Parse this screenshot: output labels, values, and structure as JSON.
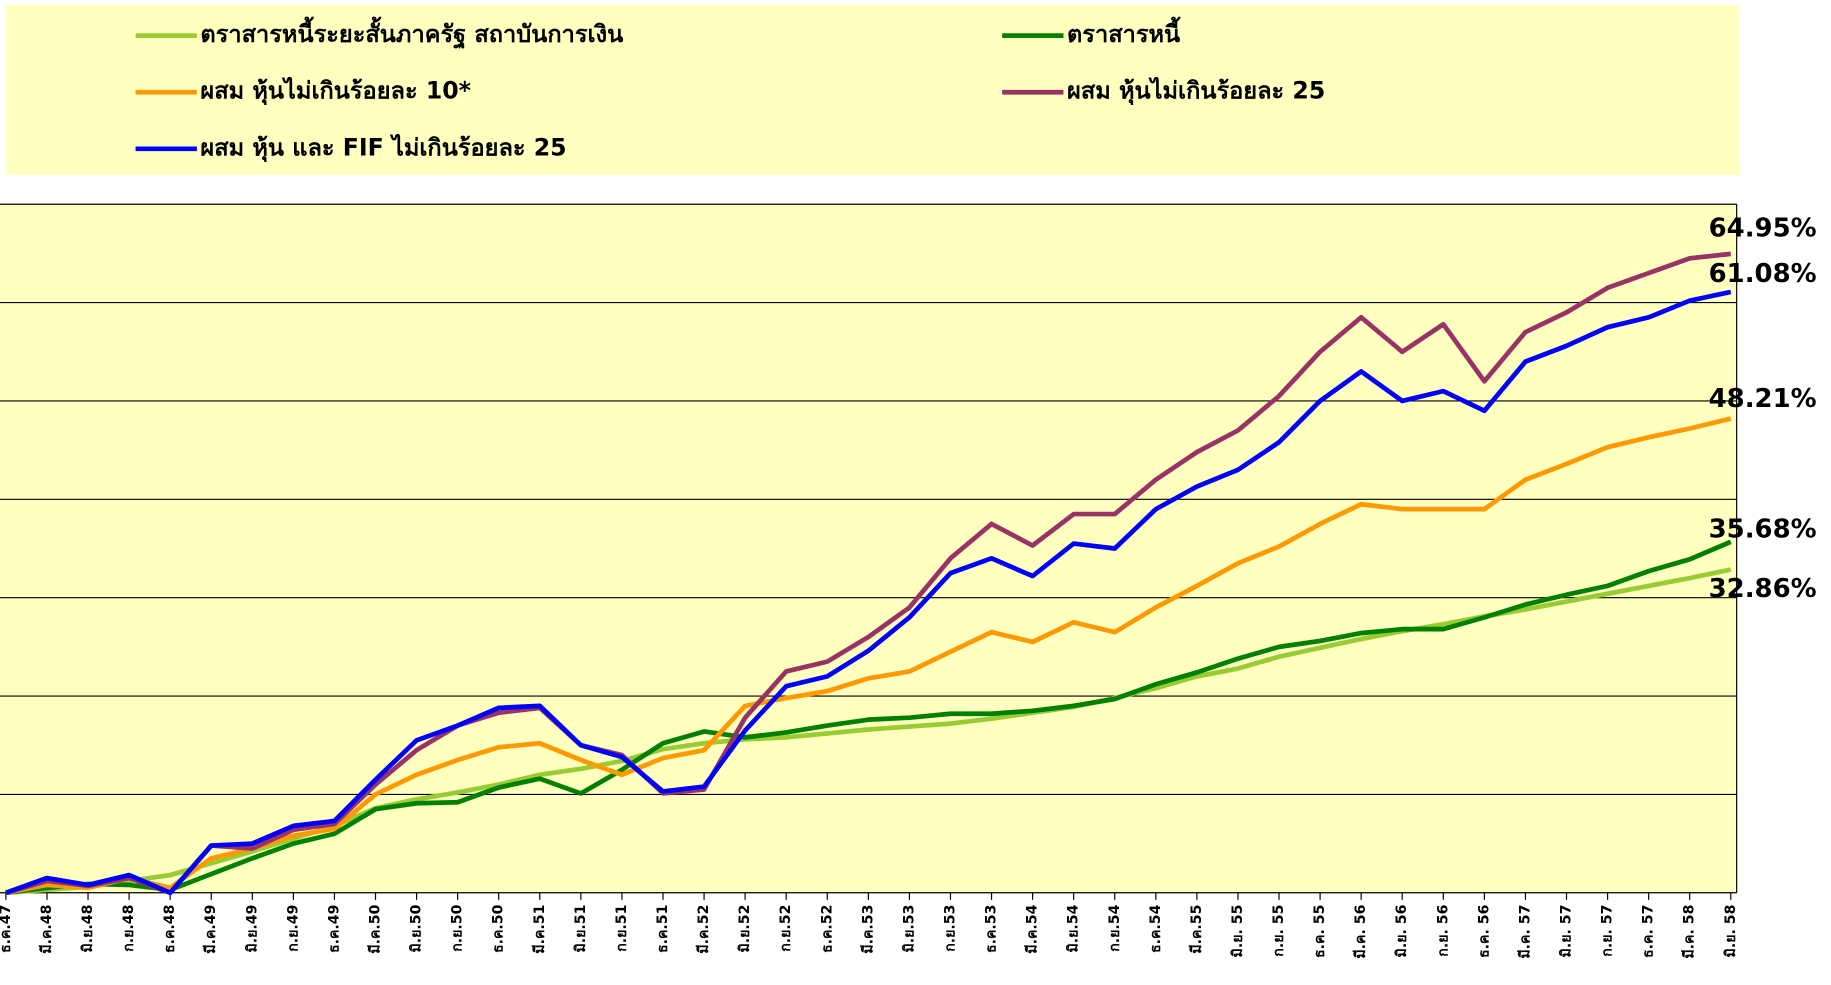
{
  "chart_data": {
    "type": "line",
    "categories": [
      "ธ.ค.47",
      "มี.ค.48",
      "มิ.ย.48",
      "ก.ย.48",
      "ธ.ค.48",
      "มี.ค.49",
      "มิ.ย.49",
      "ก.ย.49",
      "ธ.ค.49",
      "มี.ค.50",
      "มิ.ย.50",
      "ก.ย.50",
      "ธ.ค.50",
      "มี.ค.51",
      "มิ.ย.51",
      "ก.ย.51",
      "ธ.ค.51",
      "มี.ค.52",
      "มิ.ย.52",
      "ก.ย.52",
      "ธ.ค.52",
      "มี.ค.53",
      "มิ.ย.53",
      "ก.ย.53",
      "ธ.ค.53",
      "มี.ค.54",
      "มิ.ย.54",
      "ก.ย.54",
      "ธ.ค.54",
      "มี.ค.55",
      "มิ.ย. 55",
      "ก.ย. 55",
      "ธ.ค. 55",
      "มี.ค. 56",
      "มิ.ย. 56",
      "ก.ย. 56",
      "ธ.ค. 56",
      "มี.ค. 57",
      "มิ.ย. 57",
      "ก.ย. 57",
      "ธ.ค. 57",
      "มี.ค. 58",
      "มิ.ย. 58"
    ],
    "series": [
      {
        "name": "ตราสารหนี้ระยะสั้นภาครัฐ สถาบันการเงิน",
        "color": "#99cc33",
        "values": [
          0,
          0.3,
          0.6,
          1.2,
          1.8,
          3,
          4.2,
          5.5,
          6.8,
          8.6,
          9.5,
          10.2,
          11,
          12,
          12.6,
          13.4,
          14.6,
          15.2,
          15.6,
          15.8,
          16.2,
          16.6,
          16.9,
          17.2,
          17.7,
          18.3,
          18.9,
          19.8,
          20.8,
          22,
          22.8,
          24,
          24.9,
          25.8,
          26.6,
          27.3,
          28.1,
          28.8,
          29.6,
          30.4,
          31.2,
          32,
          32.86
        ],
        "value_labels": [
          null,
          null,
          null,
          null,
          null,
          null,
          null,
          null,
          null,
          null,
          null,
          null,
          null,
          null,
          null,
          null,
          null,
          null,
          null,
          null,
          null,
          null,
          null,
          null,
          null,
          null,
          null,
          null,
          null,
          null,
          null,
          null,
          null,
          null,
          null,
          null,
          null,
          null,
          null,
          null,
          null,
          null,
          "32.86%"
        ]
      },
      {
        "name": "ตราสารหนี้",
        "color": "#008000",
        "values": [
          0,
          0.5,
          0.9,
          0.8,
          0.3,
          1.9,
          3.5,
          5,
          6,
          8.5,
          9.1,
          9.2,
          10.7,
          11.6,
          10.1,
          12.5,
          15.2,
          16.4,
          15.8,
          16.3,
          17,
          17.6,
          17.8,
          18.2,
          18.2,
          18.5,
          19,
          19.7,
          21.2,
          22.4,
          23.8,
          25,
          25.6,
          26.4,
          26.8,
          26.8,
          28,
          29.3,
          30.3,
          31.2,
          32.7,
          33.9,
          35.68
        ],
        "value_labels": [
          null,
          null,
          null,
          null,
          null,
          null,
          null,
          null,
          null,
          null,
          null,
          null,
          null,
          null,
          null,
          null,
          null,
          null,
          null,
          null,
          null,
          null,
          null,
          null,
          null,
          null,
          null,
          null,
          null,
          null,
          null,
          null,
          null,
          null,
          null,
          null,
          null,
          null,
          null,
          null,
          null,
          null,
          "35.68%"
        ]
      },
      {
        "name": "ผสม หุ้นไม่เกินร้อยละ 10*",
        "color": "#ff9900",
        "values": [
          0,
          0.8,
          0.5,
          1.5,
          0.5,
          3.5,
          4.5,
          5.8,
          6.5,
          10,
          12,
          13.5,
          14.8,
          15.2,
          13.5,
          12,
          13.7,
          14.5,
          19,
          19.8,
          20.5,
          21.8,
          22.5,
          24.5,
          26.5,
          25.5,
          27.5,
          26.5,
          29,
          31.2,
          33.5,
          35.2,
          37.5,
          39.5,
          39,
          39,
          39,
          42,
          43.6,
          45.3,
          46.3,
          47.2,
          48.21
        ],
        "value_labels": [
          null,
          null,
          null,
          null,
          null,
          null,
          null,
          null,
          null,
          null,
          null,
          null,
          null,
          null,
          null,
          null,
          null,
          null,
          null,
          null,
          null,
          null,
          null,
          null,
          null,
          null,
          null,
          null,
          null,
          null,
          null,
          null,
          null,
          null,
          null,
          null,
          null,
          null,
          null,
          null,
          null,
          null,
          "48.21%"
        ]
      },
      {
        "name": "ผสม หุ้นไม่เกินร้อยละ 25",
        "color": "#993366",
        "values": [
          0,
          1.2,
          0.7,
          1.5,
          0,
          4.8,
          4.5,
          6.4,
          7,
          11,
          14.5,
          17,
          18.3,
          18.8,
          15,
          14,
          10.1,
          10.5,
          17.8,
          22.5,
          23.5,
          26,
          29,
          34,
          37.5,
          35.3,
          38.5,
          38.5,
          42,
          44.8,
          47,
          50.5,
          55,
          58.5,
          55,
          57.8,
          52,
          57,
          59,
          61.5,
          63,
          64.5,
          64.95
        ],
        "value_labels": [
          null,
          null,
          null,
          null,
          null,
          null,
          null,
          null,
          null,
          null,
          null,
          null,
          null,
          null,
          null,
          null,
          null,
          null,
          null,
          null,
          null,
          null,
          null,
          null,
          null,
          null,
          null,
          null,
          null,
          null,
          null,
          null,
          null,
          null,
          null,
          null,
          null,
          null,
          null,
          null,
          null,
          null,
          "64.95%"
        ]
      },
      {
        "name": "ผสม หุ้น และ FIF ไม่เกินร้อยละ 25",
        "color": "#0000ff",
        "values": [
          0,
          1.5,
          0.8,
          1.8,
          0,
          4.8,
          5,
          6.8,
          7.3,
          11.5,
          15.5,
          17,
          18.8,
          19,
          15,
          13.8,
          10.3,
          10.8,
          16.5,
          21,
          22,
          24.6,
          28,
          32.5,
          34,
          32.2,
          35.5,
          35,
          39,
          41.3,
          43,
          45.8,
          50,
          53,
          50,
          51,
          49,
          54,
          55.6,
          57.5,
          58.5,
          60.2,
          61.08
        ],
        "value_labels": [
          null,
          null,
          null,
          null,
          null,
          null,
          null,
          null,
          null,
          null,
          null,
          null,
          null,
          null,
          null,
          null,
          null,
          null,
          null,
          null,
          null,
          null,
          null,
          null,
          null,
          null,
          null,
          null,
          null,
          null,
          null,
          null,
          null,
          null,
          null,
          null,
          null,
          null,
          null,
          null,
          null,
          null,
          "61.08%"
        ]
      }
    ],
    "ylim": [
      0,
      70
    ],
    "yticks": [
      0,
      10,
      20,
      30,
      40,
      50,
      60,
      70
    ],
    "grid": true
  }
}
